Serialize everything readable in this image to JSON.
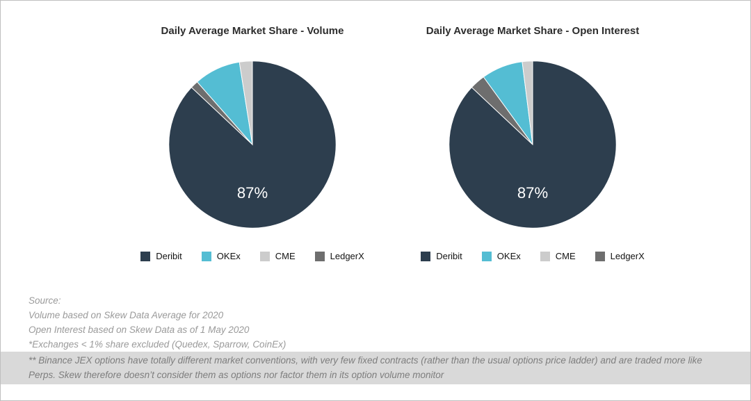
{
  "chart_data": [
    {
      "type": "pie",
      "title": "Daily Average Market Share - Volume",
      "center_label": "87%",
      "direction": "clockwise",
      "start_angle_deg": 0,
      "legend_position": "bottom",
      "legend_order": [
        "Deribit",
        "OKEx",
        "CME",
        "LedgerX"
      ],
      "slices": [
        {
          "label": "Deribit",
          "value": 87,
          "color": "#2d3e4e"
        },
        {
          "label": "LedgerX",
          "value": 1.5,
          "color": "#6e6e6e"
        },
        {
          "label": "OKEx",
          "value": 9,
          "color": "#54bdd3"
        },
        {
          "label": "CME",
          "value": 2.5,
          "color": "#cccccc"
        }
      ]
    },
    {
      "type": "pie",
      "title": "Daily Average Market Share - Open Interest",
      "center_label": "87%",
      "direction": "clockwise",
      "start_angle_deg": 0,
      "legend_position": "bottom",
      "legend_order": [
        "Deribit",
        "OKEx",
        "CME",
        "LedgerX"
      ],
      "slices": [
        {
          "label": "Deribit",
          "value": 87,
          "color": "#2d3e4e"
        },
        {
          "label": "LedgerX",
          "value": 3,
          "color": "#6e6e6e"
        },
        {
          "label": "OKEx",
          "value": 8,
          "color": "#54bdd3"
        },
        {
          "label": "CME",
          "value": 2,
          "color": "#cccccc"
        }
      ]
    }
  ],
  "footnotes": {
    "lines": [
      "Source:",
      "Volume based on Skew Data Average for 2020",
      "Open Interest based on Skew Data as of 1 May 2020",
      "*Exchanges < 1% share excluded (Quedex, Sparrow, CoinEx)"
    ],
    "highlighted_note": "** Binance JEX options have totally different market conventions, with very few fixed contracts (rather than the usual options price ladder) and are traded more like Perps. Skew therefore doesn’t consider them as options nor factor them in its option volume monitor"
  }
}
